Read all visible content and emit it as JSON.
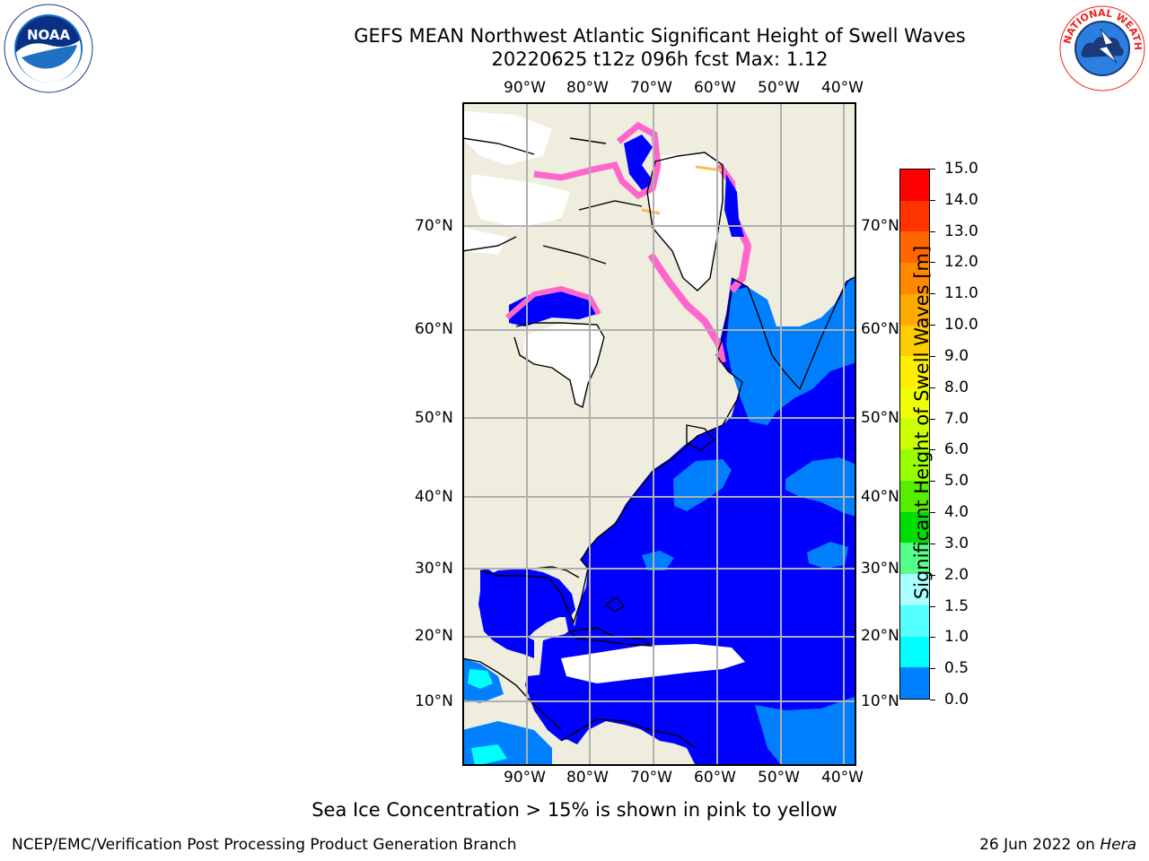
{
  "header": {
    "title_line1": "GEFS MEAN Northwest Atlantic Significant Height of Swell Waves",
    "title_line2": "20220625 t12z 096h fcst   Max: 1.12"
  },
  "logos": {
    "left": {
      "text": "NOAA",
      "ring_text": "NATIONAL OCEANIC AND ATMOSPHERIC ADMINISTRATION · U.S. DEPARTMENT OF COMMERCE"
    },
    "right": {
      "ring_text": "NATIONAL WEATHER SERVICE"
    }
  },
  "map": {
    "lon_labels": [
      "90°W",
      "80°W",
      "70°W",
      "60°W",
      "50°W",
      "40°W"
    ],
    "lat_labels": [
      "70°N",
      "60°N",
      "50°N",
      "40°N",
      "30°N",
      "20°N",
      "10°N"
    ],
    "colors": {
      "land": "#efedde",
      "ocean_low": "#0000ff",
      "ocean_mid": "#0080ff",
      "ice_pink": "#ff66cc",
      "ice_magenta": "#ff00ff",
      "ice_orange": "#ffbb55",
      "ice_free": "#ffffff",
      "grid": "#b0b0b0"
    }
  },
  "colorbar": {
    "label": "Significant Height of Swell Waves [m]",
    "ticks": [
      "15.0",
      "14.0",
      "13.0",
      "12.0",
      "11.0",
      "10.0",
      "9.0",
      "8.0",
      "7.0",
      "6.0",
      "5.0",
      "4.0",
      "3.0",
      "2.0",
      "1.5",
      "1.0",
      "0.5",
      "0.0"
    ],
    "colors": [
      "#ff0000",
      "#ff3300",
      "#ff6600",
      "#ff8800",
      "#ffaa00",
      "#ffcc00",
      "#ffee00",
      "#eeff00",
      "#ccff00",
      "#99ff00",
      "#55ee00",
      "#00dd00",
      "#55ff88",
      "#aaffff",
      "#55ffff",
      "#00ffff",
      "#0080ff",
      "#0000ff"
    ]
  },
  "footer": {
    "note": "Sea Ice Concentration > 15% is shown in pink to yellow",
    "left": "NCEP/EMC/Verification Post Processing Product Generation Branch",
    "date": "26 Jun 2022 on ",
    "host": "Hera"
  }
}
